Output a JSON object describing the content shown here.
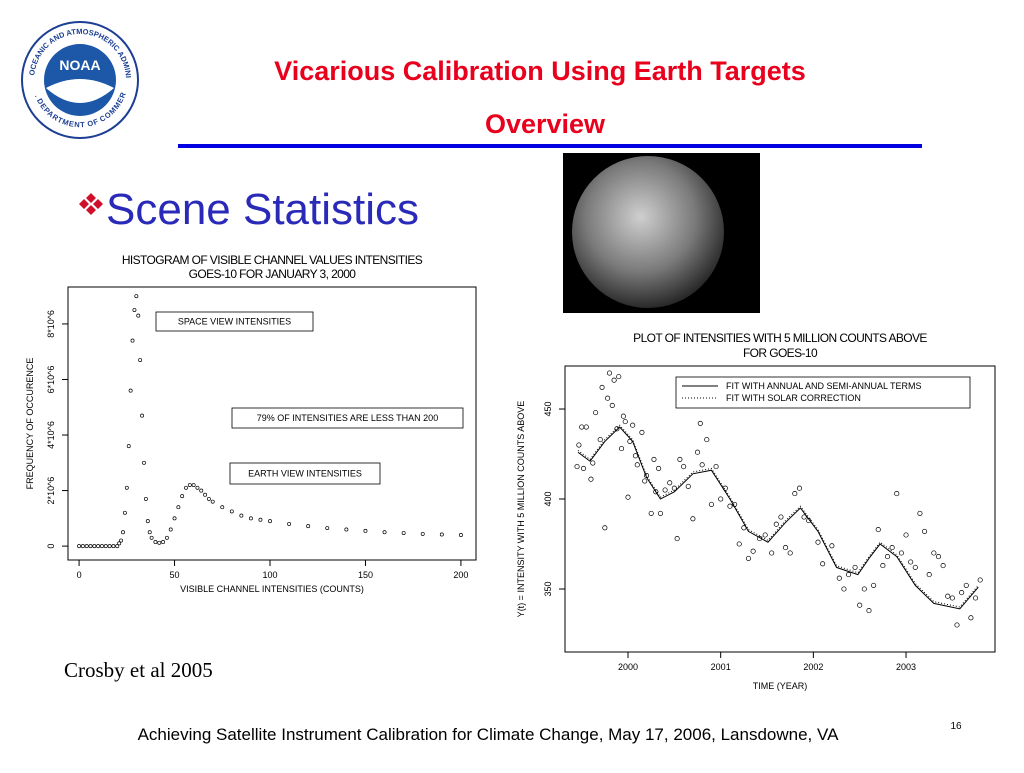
{
  "slide": {
    "title": "Vicarious Calibration Using Earth Targets",
    "subtitle": "Overview",
    "bullet": "Scene Statistics",
    "citation": "Crosby et al 2005",
    "footer": "Achieving Satellite Instrument Calibration for Climate Change, May 17, 2006, Lansdowne, VA",
    "page_number": 16,
    "logo": {
      "name": "NOAA",
      "ring_top": "NATIONAL OCEANIC AND ATMOSPHERIC ADMINISTRATION",
      "ring_bottom": "U.S. DEPARTMENT OF COMMERCE"
    }
  },
  "chart_data": [
    {
      "type": "scatter",
      "title": "HISTOGRAM OF VISIBLE CHANNEL VALUES INTENSITIES",
      "subtitle": "GOES-10 FOR JANUARY 3, 2000",
      "x_label": "VISIBLE CHANNEL INTENSITIES (COUNTS)",
      "y_label": "FREQUENCY OF OCCURENCE",
      "x": [
        0,
        2,
        4,
        6,
        8,
        10,
        12,
        14,
        16,
        18,
        20,
        21,
        22,
        23,
        24,
        25,
        26,
        27,
        28,
        29,
        30,
        31,
        32,
        33,
        34,
        35,
        36,
        37,
        38,
        40,
        42,
        44,
        46,
        48,
        50,
        52,
        54,
        56,
        58,
        60,
        62,
        64,
        66,
        68,
        70,
        75,
        80,
        85,
        90,
        95,
        100,
        110,
        120,
        130,
        140,
        150,
        160,
        170,
        180,
        190,
        200
      ],
      "values": [
        0,
        0,
        0,
        0,
        0,
        0,
        0,
        0,
        0,
        0,
        0,
        100000,
        200000,
        500000,
        1200000,
        2100000,
        3600000,
        5600000,
        7400000,
        8500000,
        9000000,
        8300000,
        6700000,
        4700000,
        3000000,
        1700000,
        900000,
        500000,
        300000,
        150000,
        120000,
        150000,
        300000,
        600000,
        1000000,
        1400000,
        1800000,
        2100000,
        2200000,
        2200000,
        2100000,
        2000000,
        1850000,
        1700000,
        1600000,
        1400000,
        1250000,
        1100000,
        1000000,
        950000,
        900000,
        800000,
        720000,
        650000,
        600000,
        550000,
        500000,
        470000,
        440000,
        420000,
        400000
      ],
      "color": "#000000",
      "xlim": [
        -5.8,
        207.9
      ],
      "ylim": [
        -500000,
        9330000
      ],
      "xticks": [
        0,
        50,
        100,
        150,
        200
      ],
      "yticks": [
        0,
        {
          "value": 2000000,
          "label": "2*10^6"
        },
        {
          "value": 4000000,
          "label": "4*10^6"
        },
        {
          "value": 6000000,
          "label": "6*10^6"
        },
        {
          "value": 8000000,
          "label": "8*10^6"
        }
      ],
      "annotations": [
        "SPACE VIEW INTENSITIES",
        "79% OF INTENSITIES ARE LESS THAN 200",
        "EARTH VIEW INTENSITIES"
      ]
    },
    {
      "type": "scatter",
      "title": "PLOT OF INTENSITIES WITH 5 MILLION COUNTS ABOVE",
      "subtitle": "FOR GOES-10",
      "x_label": "TIME (YEAR)",
      "y_label": "Y(t) = INTENSITY WITH 5 MILLION COUNTS ABOVE",
      "x": [
        1999.45,
        1999.47,
        1999.5,
        1999.52,
        1999.55,
        1999.6,
        1999.62,
        1999.65,
        1999.7,
        1999.72,
        1999.75,
        1999.78,
        1999.8,
        1999.83,
        1999.85,
        1999.88,
        1999.9,
        1999.93,
        1999.95,
        1999.97,
        2000.0,
        2000.02,
        2000.05,
        2000.08,
        2000.1,
        2000.15,
        2000.18,
        2000.2,
        2000.25,
        2000.28,
        2000.3,
        2000.33,
        2000.35,
        2000.4,
        2000.45,
        2000.5,
        2000.53,
        2000.56,
        2000.6,
        2000.65,
        2000.7,
        2000.75,
        2000.78,
        2000.8,
        2000.85,
        2000.9,
        2000.95,
        2001.0,
        2001.05,
        2001.1,
        2001.15,
        2001.2,
        2001.25,
        2001.3,
        2001.35,
        2001.42,
        2001.48,
        2001.55,
        2001.6,
        2001.65,
        2001.7,
        2001.75,
        2001.8,
        2001.85,
        2001.9,
        2001.95,
        2002.05,
        2002.1,
        2002.2,
        2002.28,
        2002.33,
        2002.38,
        2002.45,
        2002.5,
        2002.55,
        2002.6,
        2002.65,
        2002.7,
        2002.75,
        2002.8,
        2002.85,
        2002.9,
        2002.95,
        2003.0,
        2003.05,
        2003.1,
        2003.15,
        2003.2,
        2003.25,
        2003.3,
        2003.35,
        2003.4,
        2003.45,
        2003.5,
        2003.55,
        2003.6,
        2003.65,
        2003.7,
        2003.75,
        2003.8
      ],
      "values": [
        418,
        430,
        440,
        417,
        440,
        411,
        420,
        448,
        433,
        462,
        384,
        456,
        470,
        452,
        466,
        439,
        468,
        428,
        446,
        443,
        401,
        432,
        441,
        424,
        419,
        437,
        410,
        413,
        392,
        422,
        404,
        417,
        392,
        405,
        409,
        406,
        378,
        422,
        418,
        407,
        389,
        426,
        442,
        419,
        433,
        397,
        418,
        400,
        406,
        396,
        397,
        375,
        384,
        367,
        371,
        378,
        380,
        370,
        386,
        390,
        373,
        370,
        403,
        406,
        390,
        388,
        376,
        364,
        374,
        356,
        350,
        358,
        362,
        341,
        350,
        338,
        352,
        383,
        363,
        368,
        373,
        403,
        370,
        380,
        365,
        362,
        392,
        382,
        358,
        370,
        368,
        363,
        346,
        345,
        330,
        348,
        352,
        334,
        345,
        355
      ],
      "color": "#000000",
      "series": [
        {
          "name": "FIT WITH ANNUAL AND SEMI-ANNUAL TERMS",
          "style": "solid",
          "color": "#000000",
          "x": [
            1999.46,
            1999.59,
            1999.75,
            1999.91,
            2000.05,
            2000.2,
            2000.35,
            2000.5,
            2000.7,
            2000.9,
            2001.1,
            2001.3,
            2001.51,
            2001.7,
            2001.86,
            2002.05,
            2002.25,
            2002.48,
            2002.6,
            2002.72,
            2002.9,
            2003.1,
            2003.3,
            2003.58,
            2003.78
          ],
          "values": [
            426,
            421,
            432,
            440,
            432,
            412,
            400,
            404,
            414,
            416,
            400,
            382,
            376,
            387,
            395,
            382,
            362,
            358,
            367,
            375,
            368,
            352,
            342,
            339,
            351
          ]
        },
        {
          "name": "FIT WITH SOLAR CORRECTION",
          "style": "dotted",
          "color": "#000000",
          "x": [
            1999.46,
            1999.59,
            1999.75,
            1999.91,
            2000.05,
            2000.2,
            2000.35,
            2000.5,
            2000.7,
            2000.9,
            2001.1,
            2001.3,
            2001.51,
            2001.7,
            2001.86,
            2002.05,
            2002.25,
            2002.48,
            2002.6,
            2002.72,
            2002.9,
            2003.1,
            2003.3,
            2003.58,
            2003.78
          ],
          "values": [
            427,
            422,
            433,
            441,
            433,
            413,
            401,
            405,
            415,
            417,
            401,
            383,
            377,
            388,
            396,
            383,
            363,
            359,
            368,
            376,
            369,
            353,
            343,
            340,
            352
          ]
        }
      ],
      "xlim": [
        1999.32,
        2003.96
      ],
      "ylim": [
        315,
        473.9
      ],
      "xticks": [
        2000,
        2001,
        2002,
        2003
      ],
      "yticks": [
        350,
        400,
        450
      ],
      "legend": "top-right"
    }
  ]
}
